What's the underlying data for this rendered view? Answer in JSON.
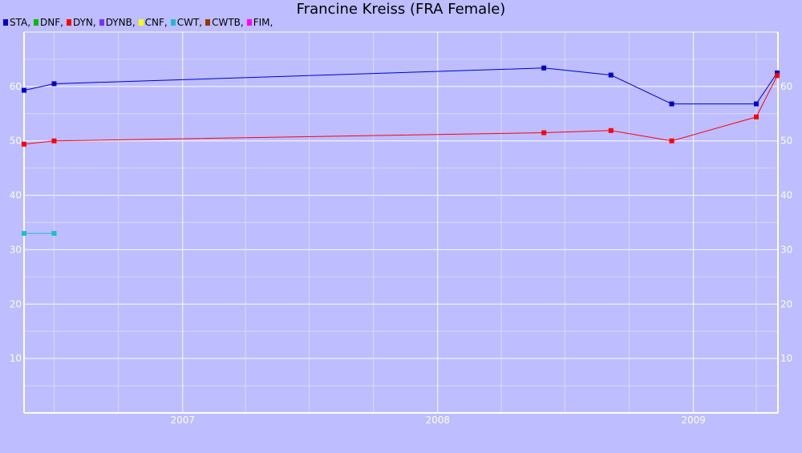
{
  "chart_data": {
    "type": "line",
    "title": "Francine Kreiss (FRA Female)",
    "legend_placement": "top-left",
    "grid": true,
    "ylim": [
      0,
      70
    ],
    "y_ticks": [
      10,
      20,
      30,
      40,
      50,
      60
    ],
    "x_ticks": [
      "2007",
      "2008",
      "2009"
    ],
    "xlim": [
      "2006-05-19",
      "2009-05-02"
    ],
    "legend": [
      {
        "label": "STA,",
        "color": "#0000cc"
      },
      {
        "label": "DNF,",
        "color": "#00bb00"
      },
      {
        "label": "DYN,",
        "color": "#ff0000"
      },
      {
        "label": "DYNB,",
        "color": "#7733ff"
      },
      {
        "label": "CNF,",
        "color": "#ffff00"
      },
      {
        "label": "CWT,",
        "color": "#22bbcc"
      },
      {
        "label": "CWTB,",
        "color": "#993300"
      },
      {
        "label": "FIM,",
        "color": "#ff00ff"
      }
    ],
    "series": [
      {
        "name": "STA",
        "color": "#0000cc",
        "points": [
          [
            "2006-05-19",
            59.3
          ],
          [
            "2006-07-01",
            60.5
          ],
          [
            "2008-06-01",
            63.4
          ],
          [
            "2008-09-05",
            62.1
          ],
          [
            "2008-12-01",
            56.8
          ],
          [
            "2009-04-01",
            56.8
          ],
          [
            "2009-05-01",
            62.5
          ]
        ]
      },
      {
        "name": "DYN",
        "color": "#ff0000",
        "points": [
          [
            "2006-05-19",
            49.4
          ],
          [
            "2006-07-01",
            50.0
          ],
          [
            "2008-06-01",
            51.5
          ],
          [
            "2008-09-05",
            51.9
          ],
          [
            "2008-12-01",
            50.0
          ],
          [
            "2009-04-01",
            54.4
          ],
          [
            "2009-05-01",
            62.0
          ]
        ]
      },
      {
        "name": "CWT",
        "color": "#22bbcc",
        "points": [
          [
            "2006-05-19",
            33.0
          ],
          [
            "2006-07-01",
            33.0
          ]
        ]
      }
    ]
  }
}
